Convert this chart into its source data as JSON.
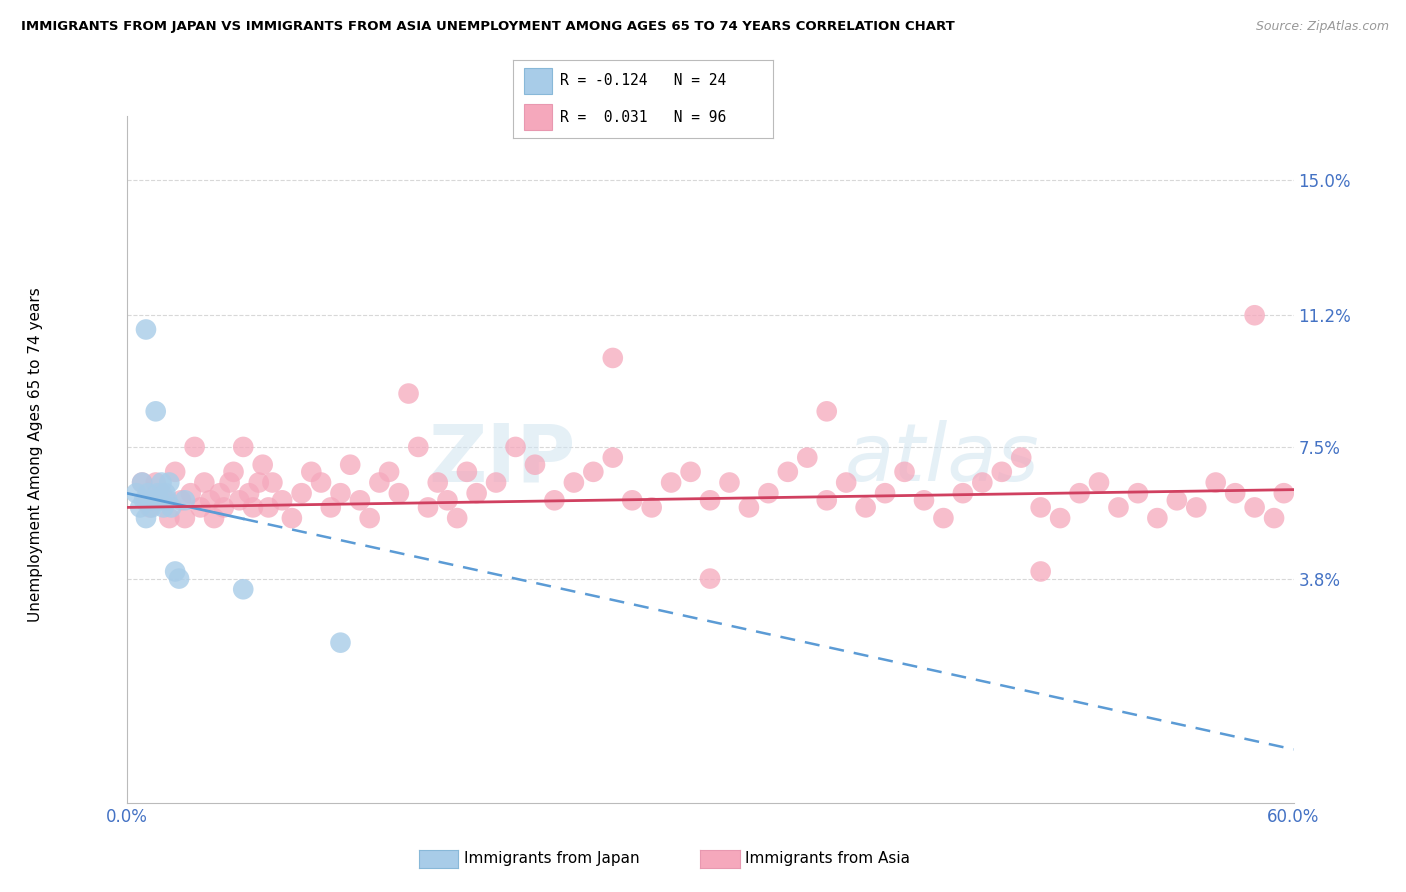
{
  "title": "IMMIGRANTS FROM JAPAN VS IMMIGRANTS FROM ASIA UNEMPLOYMENT AMONG AGES 65 TO 74 YEARS CORRELATION CHART",
  "source": "Source: ZipAtlas.com",
  "ylabel": "Unemployment Among Ages 65 to 74 years",
  "xlim": [
    0.0,
    0.6
  ],
  "ylim": [
    -0.025,
    0.168
  ],
  "ytick_vals": [
    0.038,
    0.075,
    0.112,
    0.15
  ],
  "ytick_labels": [
    "3.8%",
    "7.5%",
    "11.2%",
    "15.0%"
  ],
  "xtick_vals": [
    0.0,
    0.1,
    0.2,
    0.3,
    0.4,
    0.5,
    0.6
  ],
  "japan_color": "#a8cce8",
  "asia_color": "#f5a8bc",
  "japan_line_color": "#5b9bd5",
  "asia_line_color": "#d04060",
  "japan_R": "-0.124",
  "japan_N": "24",
  "asia_R": "0.031",
  "asia_N": "96",
  "japan_x": [
    0.005,
    0.007,
    0.008,
    0.009,
    0.01,
    0.01,
    0.011,
    0.012,
    0.013,
    0.014,
    0.015,
    0.016,
    0.017,
    0.018,
    0.019,
    0.02,
    0.021,
    0.022,
    0.023,
    0.025,
    0.027,
    0.03,
    0.06,
    0.11
  ],
  "japan_y": [
    0.062,
    0.058,
    0.065,
    0.06,
    0.108,
    0.055,
    0.062,
    0.06,
    0.058,
    0.06,
    0.085,
    0.062,
    0.06,
    0.065,
    0.058,
    0.062,
    0.06,
    0.065,
    0.058,
    0.04,
    0.038,
    0.06,
    0.035,
    0.02
  ],
  "asia_x": [
    0.008,
    0.01,
    0.012,
    0.015,
    0.018,
    0.02,
    0.022,
    0.025,
    0.028,
    0.03,
    0.033,
    0.035,
    0.038,
    0.04,
    0.043,
    0.045,
    0.048,
    0.05,
    0.053,
    0.055,
    0.058,
    0.06,
    0.063,
    0.065,
    0.068,
    0.07,
    0.073,
    0.075,
    0.08,
    0.085,
    0.09,
    0.095,
    0.1,
    0.105,
    0.11,
    0.115,
    0.12,
    0.125,
    0.13,
    0.135,
    0.14,
    0.15,
    0.155,
    0.16,
    0.165,
    0.17,
    0.175,
    0.18,
    0.19,
    0.2,
    0.21,
    0.22,
    0.23,
    0.24,
    0.25,
    0.26,
    0.27,
    0.28,
    0.29,
    0.3,
    0.31,
    0.32,
    0.33,
    0.34,
    0.35,
    0.36,
    0.37,
    0.38,
    0.39,
    0.4,
    0.41,
    0.42,
    0.43,
    0.44,
    0.45,
    0.46,
    0.47,
    0.48,
    0.49,
    0.5,
    0.51,
    0.52,
    0.53,
    0.54,
    0.55,
    0.56,
    0.57,
    0.58,
    0.59,
    0.595,
    0.145,
    0.25,
    0.36,
    0.47,
    0.58,
    0.3
  ],
  "asia_y": [
    0.065,
    0.06,
    0.058,
    0.065,
    0.062,
    0.06,
    0.055,
    0.068,
    0.06,
    0.055,
    0.062,
    0.075,
    0.058,
    0.065,
    0.06,
    0.055,
    0.062,
    0.058,
    0.065,
    0.068,
    0.06,
    0.075,
    0.062,
    0.058,
    0.065,
    0.07,
    0.058,
    0.065,
    0.06,
    0.055,
    0.062,
    0.068,
    0.065,
    0.058,
    0.062,
    0.07,
    0.06,
    0.055,
    0.065,
    0.068,
    0.062,
    0.075,
    0.058,
    0.065,
    0.06,
    0.055,
    0.068,
    0.062,
    0.065,
    0.075,
    0.07,
    0.06,
    0.065,
    0.068,
    0.072,
    0.06,
    0.058,
    0.065,
    0.068,
    0.06,
    0.065,
    0.058,
    0.062,
    0.068,
    0.072,
    0.06,
    0.065,
    0.058,
    0.062,
    0.068,
    0.06,
    0.055,
    0.062,
    0.065,
    0.068,
    0.072,
    0.058,
    0.055,
    0.062,
    0.065,
    0.058,
    0.062,
    0.055,
    0.06,
    0.058,
    0.065,
    0.062,
    0.058,
    0.055,
    0.062,
    0.09,
    0.1,
    0.085,
    0.04,
    0.112,
    0.038
  ]
}
